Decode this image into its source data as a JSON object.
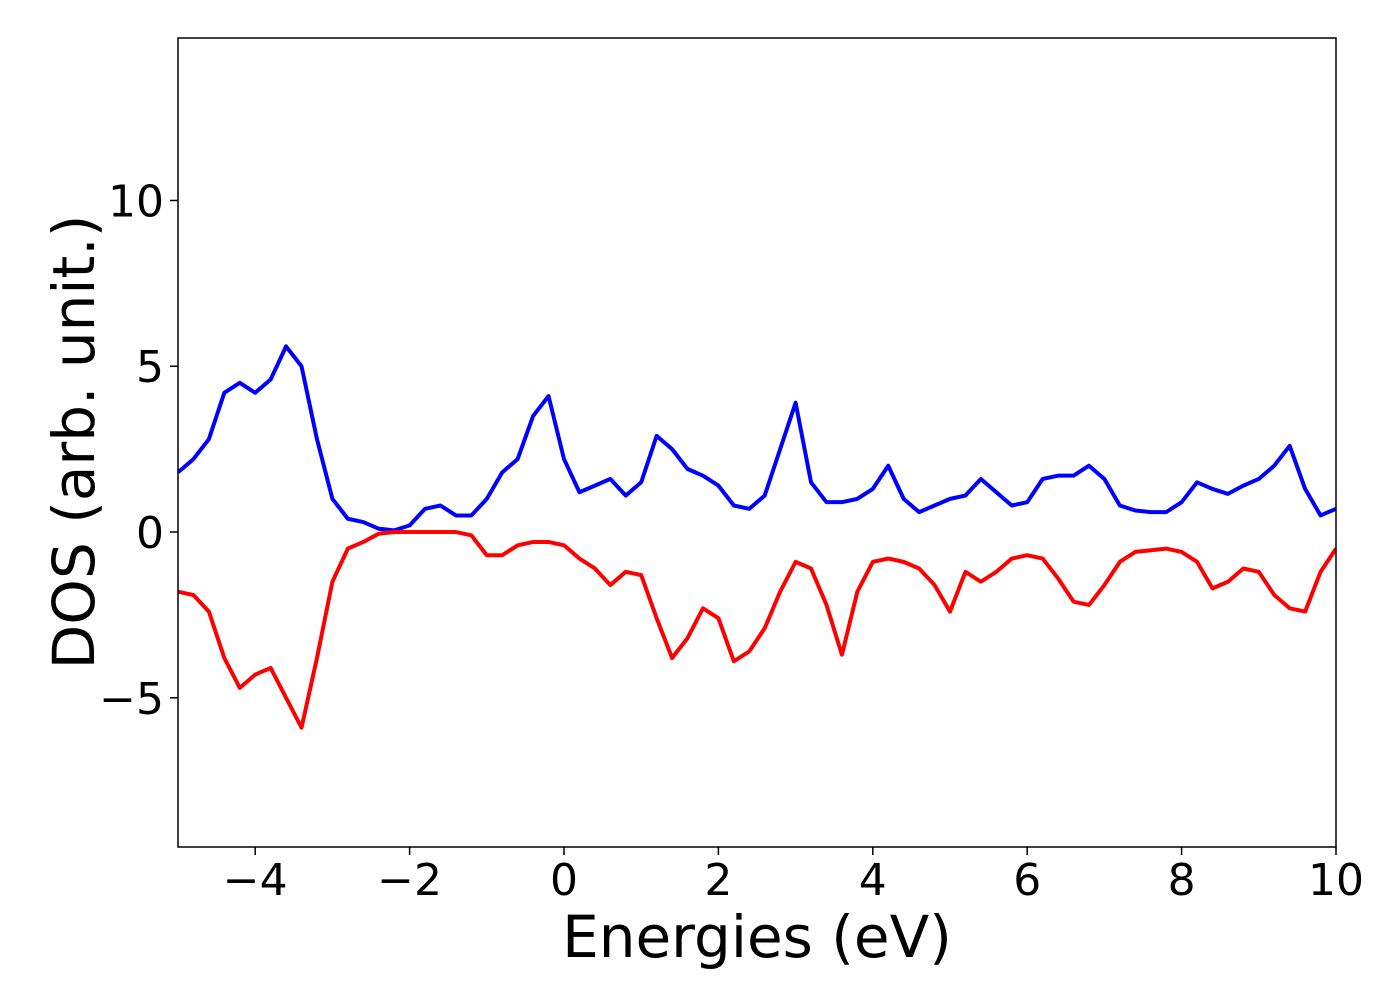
{
  "chart_data": {
    "type": "line",
    "xlabel": "Energies (eV)",
    "ylabel": "DOS (arb. unit.)",
    "xlim": [
      -5,
      10
    ],
    "ylim": [
      -9.5,
      14.9
    ],
    "xticks": [
      {
        "value": -4,
        "label": "−4"
      },
      {
        "value": -2,
        "label": "−2"
      },
      0,
      2,
      4,
      6,
      8,
      10
    ],
    "yticks": [
      {
        "value": -5,
        "label": "−5"
      },
      0,
      5,
      10
    ],
    "x": [
      -5.0,
      -4.8,
      -4.6,
      -4.4,
      -4.2,
      -4.0,
      -3.8,
      -3.6,
      -3.4,
      -3.2,
      -3.0,
      -2.8,
      -2.6,
      -2.4,
      -2.2,
      -2.0,
      -1.8,
      -1.6,
      -1.4,
      -1.2,
      -1.0,
      -0.8,
      -0.6,
      -0.4,
      -0.2,
      0.0,
      0.2,
      0.4,
      0.6,
      0.8,
      1.0,
      1.2,
      1.4,
      1.6,
      1.8,
      2.0,
      2.2,
      2.4,
      2.6,
      2.8,
      3.0,
      3.2,
      3.4,
      3.6,
      3.8,
      4.0,
      4.2,
      4.4,
      4.6,
      4.8,
      5.0,
      5.2,
      5.4,
      5.6,
      5.8,
      6.0,
      6.2,
      6.4,
      6.6,
      6.8,
      7.0,
      7.2,
      7.4,
      7.6,
      7.8,
      8.0,
      8.2,
      8.4,
      8.6,
      8.8,
      9.0,
      9.2,
      9.4,
      9.6,
      9.8,
      10.0
    ],
    "series": [
      {
        "color": "#0000ff",
        "values": [
          1.8,
          2.2,
          2.8,
          4.2,
          4.5,
          4.2,
          4.6,
          5.6,
          5.0,
          2.8,
          1.0,
          0.4,
          0.3,
          0.1,
          0.05,
          0.2,
          0.7,
          0.8,
          0.5,
          0.5,
          1.0,
          1.8,
          2.2,
          3.5,
          4.1,
          2.2,
          1.2,
          1.4,
          1.6,
          1.1,
          1.5,
          2.9,
          2.5,
          1.9,
          1.7,
          1.4,
          0.8,
          0.7,
          1.1,
          2.5,
          3.9,
          1.5,
          0.9,
          0.9,
          1.0,
          1.3,
          2.0,
          1.0,
          0.6,
          0.8,
          1.0,
          1.1,
          1.6,
          1.2,
          0.8,
          0.9,
          1.6,
          1.7,
          1.7,
          2.0,
          1.6,
          0.8,
          0.65,
          0.6,
          0.6,
          0.9,
          1.5,
          1.3,
          1.15,
          1.4,
          1.6,
          2.0,
          2.6,
          1.3,
          0.5,
          0.7
        ]
      },
      {
        "color": "#ff0000",
        "values": [
          -1.8,
          -1.9,
          -2.4,
          -3.8,
          -4.7,
          -4.3,
          -4.1,
          -5.0,
          -5.9,
          -3.8,
          -1.5,
          -0.5,
          -0.3,
          -0.05,
          0,
          0,
          0,
          0,
          0,
          -0.1,
          -0.7,
          -0.7,
          -0.4,
          -0.3,
          -0.3,
          -0.4,
          -0.8,
          -1.1,
          -1.6,
          -1.2,
          -1.3,
          -2.6,
          -3.8,
          -3.2,
          -2.3,
          -2.6,
          -3.9,
          -3.6,
          -2.9,
          -1.8,
          -0.9,
          -1.1,
          -2.2,
          -3.7,
          -1.8,
          -0.9,
          -0.8,
          -0.9,
          -1.1,
          -1.6,
          -2.4,
          -1.2,
          -1.5,
          -1.2,
          -0.8,
          -0.7,
          -0.8,
          -1.4,
          -2.1,
          -2.2,
          -1.6,
          -0.9,
          -0.6,
          -0.55,
          -0.5,
          -0.6,
          -0.9,
          -1.7,
          -1.5,
          -1.1,
          -1.2,
          -1.9,
          -2.3,
          -2.4,
          -1.2,
          -0.5
        ]
      }
    ]
  }
}
